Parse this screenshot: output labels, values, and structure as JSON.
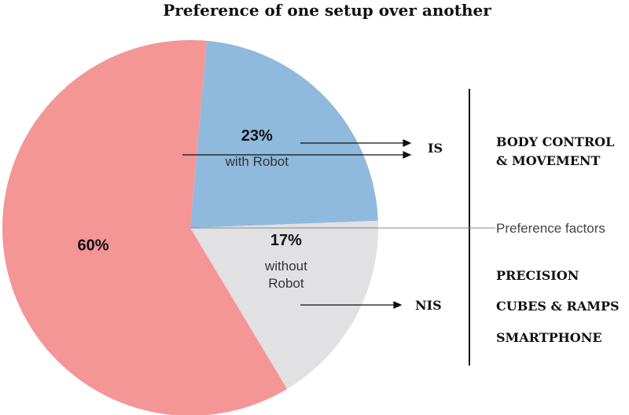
{
  "chart_data": {
    "type": "pie",
    "title": "Preference of one setup over another",
    "slices": [
      {
        "label_lines": [
          "with Robot"
        ],
        "value": 23,
        "value_label": "23%",
        "color": "#8fb9dd"
      },
      {
        "label_lines": [
          "without",
          "Robot"
        ],
        "value": 17,
        "value_label": "17%",
        "color": "#e1e1e3"
      },
      {
        "label_lines": [],
        "value": 60,
        "value_label": "60%",
        "color": "#f49596"
      }
    ],
    "categories": [
      {
        "name": "IS",
        "factors": [
          "BODY CONTROL",
          "& MOVEMENT"
        ]
      },
      {
        "name": "NIS",
        "factors": [
          "PRECISION",
          "CUBES & RAMPS",
          "SMARTPHONE"
        ]
      }
    ],
    "divider_label": "Preference factors"
  }
}
